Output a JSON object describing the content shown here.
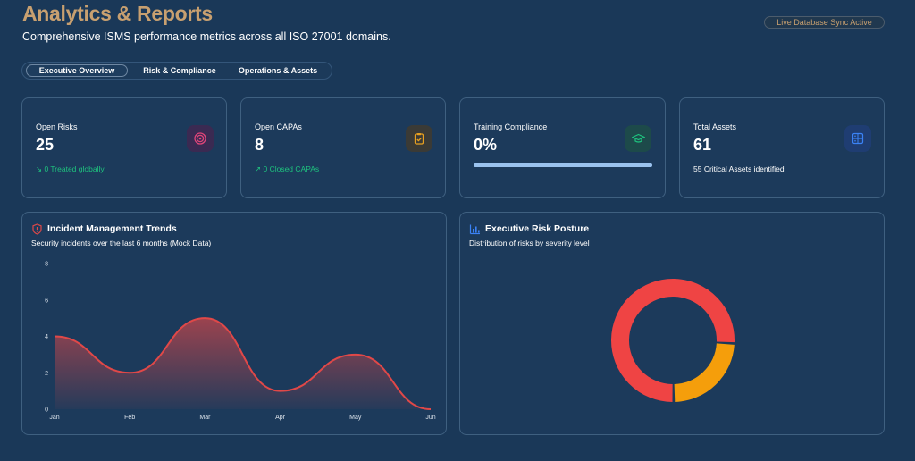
{
  "header": {
    "title": "Analytics & Reports",
    "subtitle": "Comprehensive ISMS performance metrics across all ISO 27001 domains.",
    "sync_badge": "Live Database Sync Active"
  },
  "tabs": [
    {
      "label": "Executive Overview",
      "active": true
    },
    {
      "label": "Risk & Compliance",
      "active": false
    },
    {
      "label": "Operations & Assets",
      "active": false
    }
  ],
  "kpis": [
    {
      "label": "Open Risks",
      "value": "25",
      "sub": "0 Treated globally",
      "icon": "target-icon",
      "accent": "#e0457a"
    },
    {
      "label": "Open CAPAs",
      "value": "8",
      "sub": "0 Closed CAPAs",
      "icon": "clipboard-check-icon",
      "accent": "#e8a020"
    },
    {
      "label": "Training Compliance",
      "value": "0%",
      "progress": 0,
      "icon": "graduation-cap-icon",
      "accent": "#1ec27e"
    },
    {
      "label": "Total Assets",
      "value": "61",
      "sub": "55 Critical Assets identified",
      "icon": "server-icon",
      "accent": "#3b82f6"
    }
  ],
  "incident_panel": {
    "title": "Incident Management Trends",
    "subtitle": "Security incidents over the last 6 months (Mock Data)",
    "icon": "shield-alert-icon"
  },
  "risk_panel": {
    "title": "Executive Risk Posture",
    "subtitle": "Distribution of risks by severity level",
    "icon": "bar-chart-icon"
  },
  "chart_data": [
    {
      "type": "area",
      "x": [
        "Jan",
        "Feb",
        "Mar",
        "Apr",
        "May",
        "Jun"
      ],
      "values": [
        4,
        2,
        5,
        1,
        3,
        0
      ],
      "ylim": [
        0,
        8
      ],
      "yticks": [
        0,
        2,
        4,
        6,
        8
      ],
      "color": "#e04848"
    },
    {
      "type": "pie",
      "donut": true,
      "slices": [
        {
          "value": 19,
          "color": "#ef4444"
        },
        {
          "value": 6,
          "color": "#f59e0b"
        }
      ]
    }
  ],
  "colors": {
    "background": "#1a3858",
    "card": "#1c3a5b",
    "accent_gold": "#c8a070",
    "positive": "#1ec27e"
  }
}
